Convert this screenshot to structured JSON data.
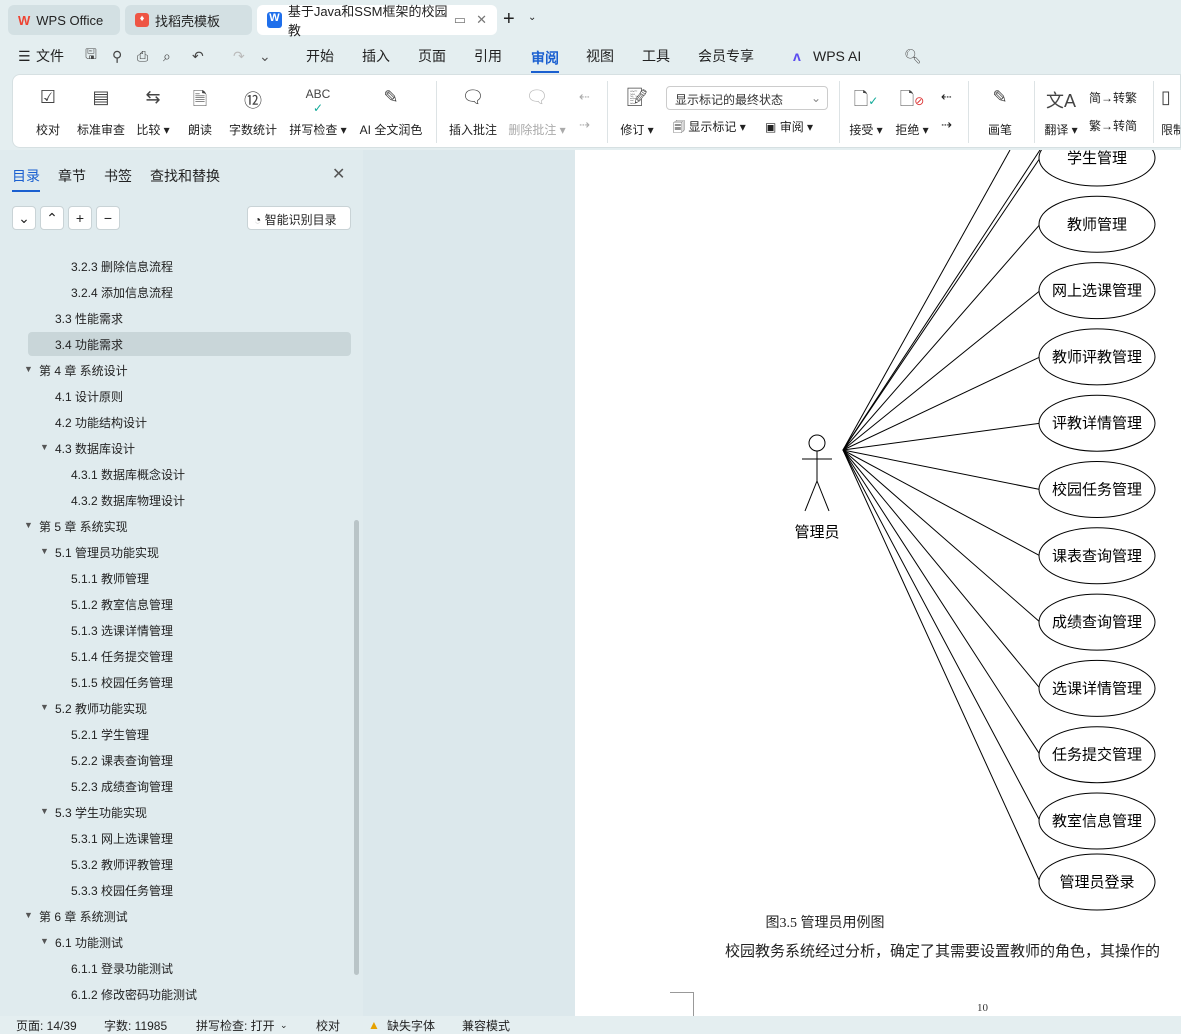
{
  "tabs": [
    {
      "label": "WPS Office",
      "icon": "wps-logo-icon"
    },
    {
      "label": "找稻壳模板",
      "icon": "docer-icon"
    },
    {
      "label": "基于Java和SSM框架的校园教",
      "icon": "word-doc-icon"
    }
  ],
  "menu": {
    "file": "文件",
    "items": [
      "开始",
      "插入",
      "页面",
      "引用",
      "审阅",
      "视图",
      "工具",
      "会员专享"
    ],
    "active": "审阅",
    "ai": "WPS AI"
  },
  "ribbon": {
    "buttons": [
      "校对",
      "标准审查",
      "比较",
      "朗读",
      "字数统计",
      "拼写检查",
      "AI 全文润色",
      "插入批注",
      "删除批注",
      "修订",
      "接受",
      "拒绝",
      "画笔",
      "翻译",
      "限制"
    ],
    "markup_select": "显示标记的最终状态",
    "show_markup": "显示标记",
    "review": "审阅",
    "to_trad": "转繁",
    "to_simp": "转简"
  },
  "sidebar": {
    "tabs": [
      "目录",
      "章节",
      "书签",
      "查找和替换"
    ],
    "smart": "智能识别目录",
    "toc": [
      {
        "t": "3.2.3  删除信息流程",
        "l": 3
      },
      {
        "t": "3.2.4  添加信息流程",
        "l": 3
      },
      {
        "t": "3.3  性能需求",
        "l": 2
      },
      {
        "t": "3.4  功能需求",
        "l": 2,
        "sel": true
      },
      {
        "t": "第 4 章  系统设计",
        "l": 1,
        "c": true
      },
      {
        "t": "4.1  设计原则",
        "l": 2
      },
      {
        "t": "4.2  功能结构设计",
        "l": 2
      },
      {
        "t": "4.3  数据库设计",
        "l": 2,
        "c": true
      },
      {
        "t": "4.3.1  数据库概念设计",
        "l": 3
      },
      {
        "t": "4.3.2  数据库物理设计",
        "l": 3
      },
      {
        "t": "第 5 章  系统实现",
        "l": 1,
        "c": true
      },
      {
        "t": "5.1  管理员功能实现",
        "l": 2,
        "c": true
      },
      {
        "t": "5.1.1  教师管理",
        "l": 3
      },
      {
        "t": "5.1.2  教室信息管理",
        "l": 3
      },
      {
        "t": "5.1.3  选课详情管理",
        "l": 3
      },
      {
        "t": "5.1.4  任务提交管理",
        "l": 3
      },
      {
        "t": "5.1.5  校园任务管理",
        "l": 3
      },
      {
        "t": "5.2  教师功能实现",
        "l": 2,
        "c": true
      },
      {
        "t": "5.2.1  学生管理",
        "l": 3
      },
      {
        "t": "5.2.2  课表查询管理",
        "l": 3
      },
      {
        "t": "5.2.3  成绩查询管理",
        "l": 3
      },
      {
        "t": "5.3  学生功能实现",
        "l": 2,
        "c": true
      },
      {
        "t": "5.3.1  网上选课管理",
        "l": 3
      },
      {
        "t": "5.3.2  教师评教管理",
        "l": 3
      },
      {
        "t": "5.3.3  校园任务管理",
        "l": 3
      },
      {
        "t": "第 6 章  系统测试",
        "l": 1,
        "c": true
      },
      {
        "t": "6.1  功能测试",
        "l": 2,
        "c": true
      },
      {
        "t": "6.1.1  登录功能测试",
        "l": 3
      },
      {
        "t": "6.1.2  修改密码功能测试",
        "l": 3
      }
    ]
  },
  "diagram": {
    "actor": "管理员",
    "usecases": [
      "学生管理",
      "教师管理",
      "网上选课管理",
      "教师评教管理",
      "评教详情管理",
      "校园任务管理",
      "课表查询管理",
      "成绩查询管理",
      "选课详情管理",
      "任务提交管理",
      "教室信息管理",
      "管理员登录"
    ],
    "caption": "图3.5  管理员用例图",
    "body": "校园教务系统经过分析，确定了其需要设置教师的角色，其操作的",
    "page_number": "10"
  },
  "status": {
    "page": "页面: 14/39",
    "words": "字数: 11985",
    "spell": "拼写检查: 打开",
    "proof": "校对",
    "missing_font": "缺失字体",
    "compat": "兼容模式"
  }
}
